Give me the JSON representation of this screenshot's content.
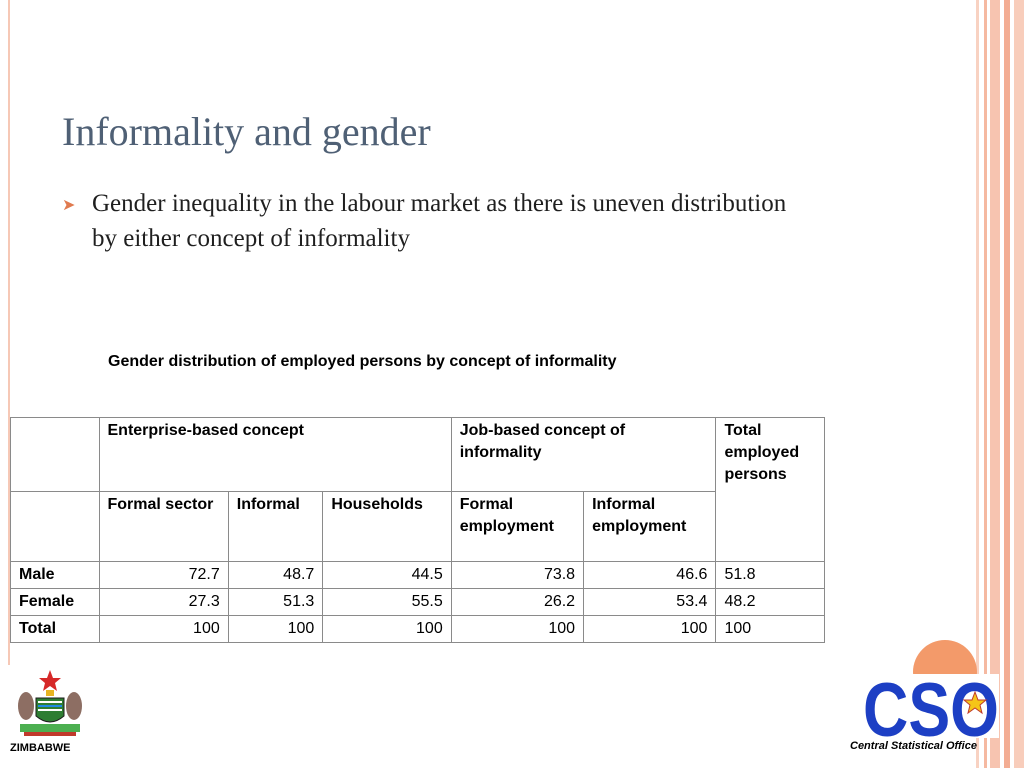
{
  "slide": {
    "title": "Informality and gender",
    "bullet": "Gender inequality in the labour market as there is uneven distribution by either concept of informality",
    "caption": "Gender distribution of employed persons by concept of informality"
  },
  "table": {
    "groups": {
      "enterprise": "Enterprise-based concept",
      "job": "Job-based concept of informality",
      "total": "Total employed persons"
    },
    "subheaders": [
      "Formal sector",
      "Informal",
      "Households",
      "Formal employment",
      "Informal employment"
    ],
    "rows": [
      {
        "label": "Male",
        "values": [
          "72.7",
          "48.7",
          "44.5",
          "73.8",
          "46.6",
          "51.8"
        ]
      },
      {
        "label": "Female",
        "values": [
          "27.3",
          "51.3",
          "55.5",
          "26.2",
          "53.4",
          "48.2"
        ]
      },
      {
        "label": "Total",
        "values": [
          "100",
          "100",
          "100",
          "100",
          "100",
          "100"
        ]
      }
    ]
  },
  "footer": {
    "left_label": "ZIMBABWE",
    "right_label": "Central Statistical Office",
    "logo_text": "CSO"
  },
  "colors": {
    "title": "#4f6075",
    "accent": "#e07a4f",
    "logo_blue": "#1d3fc4",
    "logo_orange": "#f39a6a"
  }
}
